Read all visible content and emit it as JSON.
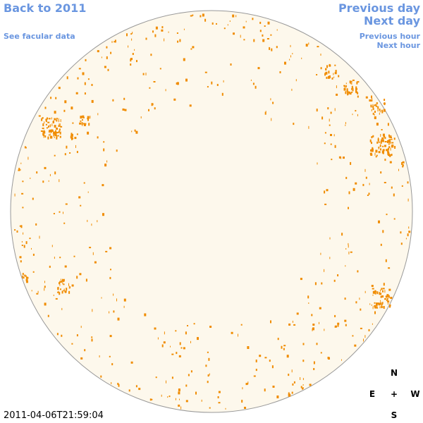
{
  "nav": {
    "back_year": "Back to 2011",
    "facular_link": "See facular data",
    "previous_day": "Previous day",
    "next_day": "Next day",
    "previous_hour": "Previous hour",
    "next_hour": "Next hour"
  },
  "timestamp": "2011-04-06T21:59:04",
  "compass": {
    "north": "N",
    "east": "E",
    "center": "+",
    "west": "W",
    "south": "S"
  }
}
